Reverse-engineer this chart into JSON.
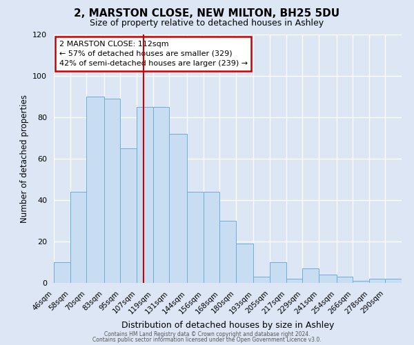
{
  "title": "2, MARSTON CLOSE, NEW MILTON, BH25 5DU",
  "subtitle": "Size of property relative to detached houses in Ashley",
  "xlabel": "Distribution of detached houses by size in Ashley",
  "ylabel": "Number of detached properties",
  "bin_labels": [
    "46sqm",
    "58sqm",
    "70sqm",
    "83sqm",
    "95sqm",
    "107sqm",
    "119sqm",
    "131sqm",
    "144sqm",
    "156sqm",
    "168sqm",
    "180sqm",
    "193sqm",
    "205sqm",
    "217sqm",
    "229sqm",
    "241sqm",
    "254sqm",
    "266sqm",
    "278sqm",
    "290sqm"
  ],
  "bin_edges": [
    46,
    58,
    70,
    83,
    95,
    107,
    119,
    131,
    144,
    156,
    168,
    180,
    193,
    205,
    217,
    229,
    241,
    254,
    266,
    278,
    290
  ],
  "bar_heights": [
    10,
    44,
    90,
    89,
    65,
    85,
    85,
    72,
    44,
    44,
    30,
    19,
    3,
    10,
    2,
    7,
    4,
    3,
    1,
    2,
    2
  ],
  "bar_color": "#c9ddf2",
  "bar_edge_color": "#6baed6",
  "background_color": "#dce6f5",
  "plot_bg_color": "#dce6f5",
  "grid_color": "#ffffff",
  "vline_x": 112,
  "vline_color": "#cc0000",
  "ylim": [
    0,
    120
  ],
  "yticks": [
    0,
    20,
    40,
    60,
    80,
    100,
    120
  ],
  "annotation_line1": "2 MARSTON CLOSE: 112sqm",
  "annotation_line2": "← 57% of detached houses are smaller (329)",
  "annotation_line3": "42% of semi-detached houses are larger (239) →",
  "annotation_box_color": "#ffffff",
  "annotation_box_edge": "#cc0000",
  "footer_line1": "Contains HM Land Registry data © Crown copyright and database right 2024.",
  "footer_line2": "Contains public sector information licensed under the Open Government Licence v3.0."
}
